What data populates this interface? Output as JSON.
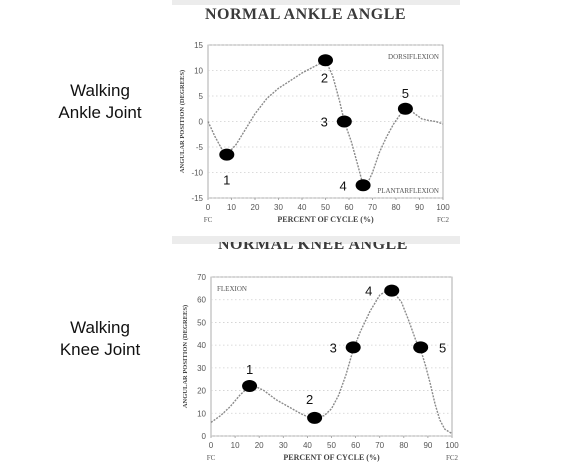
{
  "ankle": {
    "side_label": [
      "Walking",
      "Ankle Joint"
    ],
    "chart_data": {
      "type": "line",
      "title": "NORMAL ANKLE ANGLE",
      "xlabel": "PERCENT OF CYCLE (%)",
      "ylabel": "ANGULAR POSITION (DEGREES)",
      "xlim": [
        0,
        100
      ],
      "ylim": [
        -15,
        15
      ],
      "xticks": [
        0,
        10,
        20,
        30,
        40,
        50,
        60,
        70,
        80,
        90,
        100
      ],
      "yticks": [
        15,
        10,
        5,
        0,
        -5,
        -10,
        -15
      ],
      "x_end_labels": {
        "start": "FC",
        "end": "FC2"
      },
      "grid": true,
      "annotations": [
        {
          "text": "DORSIFLEXION",
          "position": "top-right"
        },
        {
          "text": "PLANTARFLEXION",
          "position": "bottom-right"
        }
      ],
      "series": [
        {
          "x": [
            0,
            3,
            6,
            8,
            12,
            16,
            20,
            25,
            30,
            35,
            40,
            44,
            47,
            50,
            53,
            56,
            58,
            61,
            64,
            66,
            68,
            70,
            73,
            76,
            79,
            82,
            84,
            86,
            88,
            91,
            94,
            97,
            100
          ],
          "y": [
            0,
            -3,
            -5.5,
            -6.5,
            -4.5,
            -1.5,
            1.5,
            4.5,
            6.5,
            8,
            9.5,
            10.5,
            11.2,
            12,
            9,
            4,
            0,
            -4,
            -9,
            -12.5,
            -12,
            -10,
            -6,
            -3,
            -0.5,
            1.5,
            2.5,
            2.3,
            1.5,
            0.5,
            0.2,
            0,
            -0.5
          ]
        }
      ],
      "points": [
        {
          "label": "1",
          "x": 8,
          "y": -6.5
        },
        {
          "label": "2",
          "x": 50,
          "y": 12
        },
        {
          "label": "3",
          "x": 58,
          "y": 0
        },
        {
          "label": "4",
          "x": 66,
          "y": -12.5
        },
        {
          "label": "5",
          "x": 84,
          "y": 2.5
        }
      ]
    }
  },
  "knee": {
    "side_label": [
      "Walking",
      "Knee Joint"
    ],
    "chart_data": {
      "type": "line",
      "title": "NORMAL KNEE ANGLE",
      "xlabel": "PERCENT OF CYCLE (%)",
      "ylabel": "ANGULAR POSITION (DEGREES)",
      "xlim": [
        0,
        100
      ],
      "ylim": [
        0,
        70
      ],
      "xticks": [
        0,
        10,
        20,
        30,
        40,
        50,
        60,
        70,
        80,
        90,
        100
      ],
      "yticks": [
        70,
        60,
        50,
        40,
        30,
        20,
        10,
        0
      ],
      "x_end_labels": {
        "start": "FC",
        "end": "FC2"
      },
      "grid": true,
      "annotations": [
        {
          "text": "FLEXION",
          "position": "top-left"
        }
      ],
      "series": [
        {
          "x": [
            0,
            4,
            8,
            12,
            15,
            18,
            22,
            27,
            32,
            37,
            41,
            44,
            47,
            50,
            53,
            56,
            59,
            62,
            66,
            70,
            73,
            76,
            79,
            82,
            85,
            87,
            89,
            91,
            93,
            95,
            97,
            100
          ],
          "y": [
            6,
            9,
            13,
            18,
            21,
            22,
            20,
            16,
            13,
            10,
            8,
            8,
            9,
            12,
            18,
            27,
            38,
            46,
            55,
            62,
            64,
            63,
            59,
            51,
            42,
            38,
            31,
            23,
            14,
            7,
            3,
            1
          ]
        }
      ],
      "points": [
        {
          "label": "1",
          "x": 16,
          "y": 22
        },
        {
          "label": "2",
          "x": 43,
          "y": 8
        },
        {
          "label": "3",
          "x": 59,
          "y": 39
        },
        {
          "label": "4",
          "x": 75,
          "y": 64
        },
        {
          "label": "5",
          "x": 87,
          "y": 39
        }
      ]
    }
  }
}
